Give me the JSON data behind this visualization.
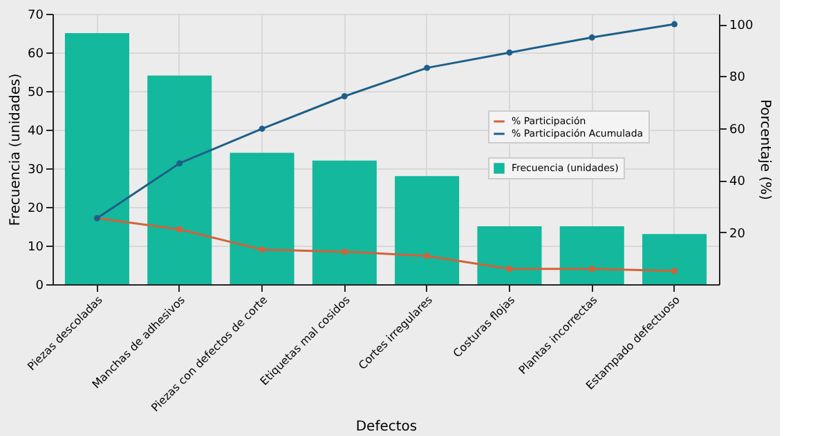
{
  "chart_data": {
    "type": "bar",
    "xlabel": "Defectos",
    "ylabel": "Frecuencia (unidades)",
    "y2label": "Porcentaje (%)",
    "categories": [
      "Piezas descoladas",
      "Manchas de adhesivos",
      "Piezas con defectos de corte",
      "Etiquetas mal cosidos",
      "Cortes irregulares",
      "Costuras flojas",
      "Plantas incorrectas",
      "Estampado defectuoso"
    ],
    "series": [
      {
        "name": "Frecuencia (unidades)",
        "color": "#14b89c",
        "values": [
          65,
          54,
          34,
          32,
          28,
          15,
          15,
          13
        ]
      },
      {
        "name": "% Participación",
        "type": "line",
        "axis": "y2",
        "color": "#d2623a",
        "values": [
          25.4,
          21.1,
          13.3,
          12.5,
          10.9,
          5.9,
          5.9,
          5.1
        ]
      },
      {
        "name": "% Participación Acumulada",
        "type": "line",
        "axis": "y2",
        "color": "#1d5f8a",
        "values": [
          25.4,
          46.5,
          59.8,
          72.3,
          83.2,
          89.1,
          94.9,
          100
        ]
      }
    ],
    "ylim": [
      0,
      70
    ],
    "yticks": [
      0,
      10,
      20,
      30,
      40,
      50,
      60,
      70
    ],
    "y2lim": [
      0,
      104
    ],
    "y2ticks": [
      20,
      40,
      60,
      80,
      100
    ],
    "grid": true,
    "legend": "top right",
    "marker": "circle",
    "line_style": "solid"
  }
}
